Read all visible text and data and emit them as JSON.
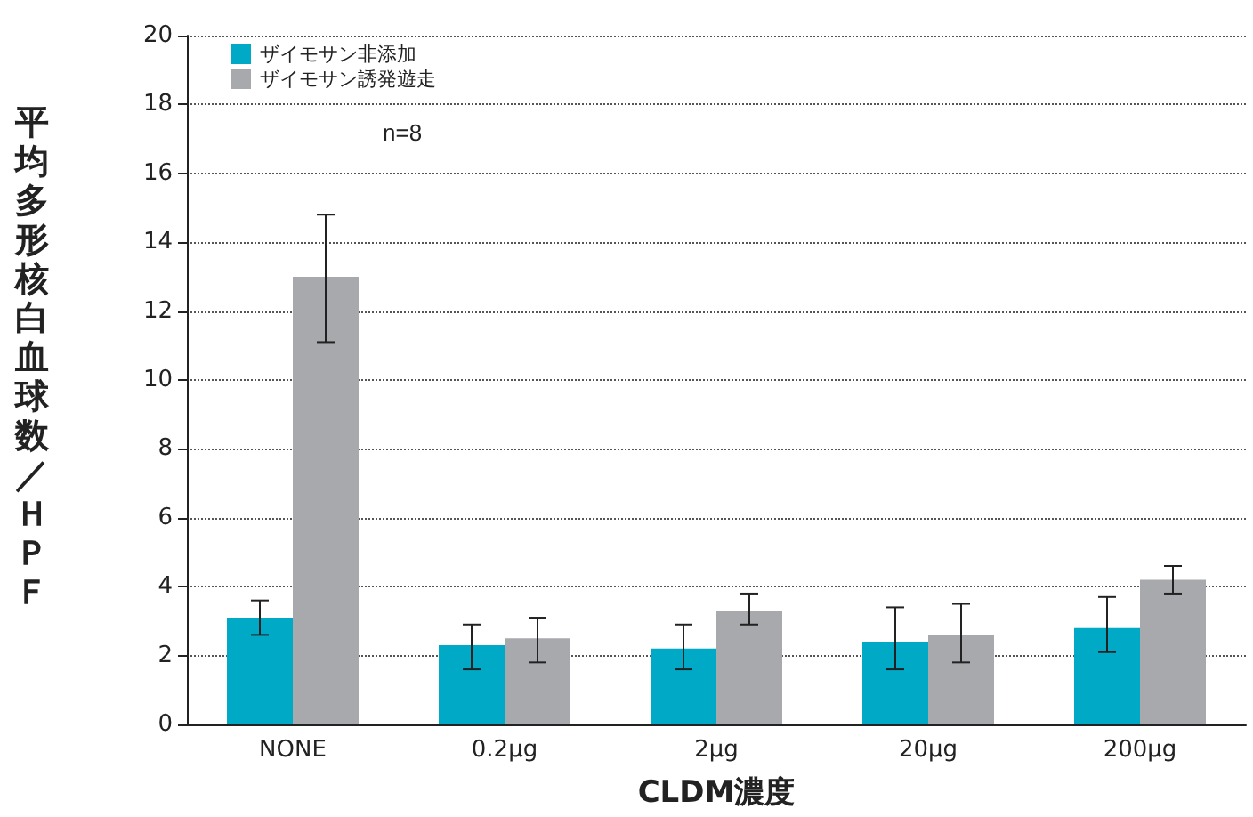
{
  "chart_data": {
    "type": "bar",
    "xlabel": "CLDM濃度",
    "ylabel": "平均多形核白血球数／ＨＰＦ",
    "categories": [
      "NONE",
      "0.2μg",
      "2μg",
      "20μg",
      "200μg"
    ],
    "series": [
      {
        "name": "ザイモサン非添加",
        "color": "#00a9c6",
        "values": [
          3.1,
          2.3,
          2.2,
          2.4,
          2.8
        ],
        "errors": [
          [
            2.6,
            3.6
          ],
          [
            1.6,
            2.9
          ],
          [
            1.6,
            2.9
          ],
          [
            1.6,
            3.4
          ],
          [
            2.1,
            3.7
          ]
        ]
      },
      {
        "name": "ザイモサン誘発遊走",
        "color": "#a7a9ac",
        "values": [
          13,
          2.5,
          3.3,
          2.6,
          4.2
        ],
        "errors": [
          [
            11.1,
            14.8
          ],
          [
            1.8,
            3.1
          ],
          [
            2.9,
            3.8
          ],
          [
            1.8,
            3.5
          ],
          [
            3.8,
            4.6
          ]
        ]
      }
    ],
    "ylim": [
      0,
      20
    ],
    "yticks": [
      0,
      2,
      4,
      6,
      8,
      10,
      12,
      14,
      16,
      18,
      20
    ],
    "grid": "y",
    "legend": "top left",
    "annotations": [
      "n=8"
    ]
  }
}
